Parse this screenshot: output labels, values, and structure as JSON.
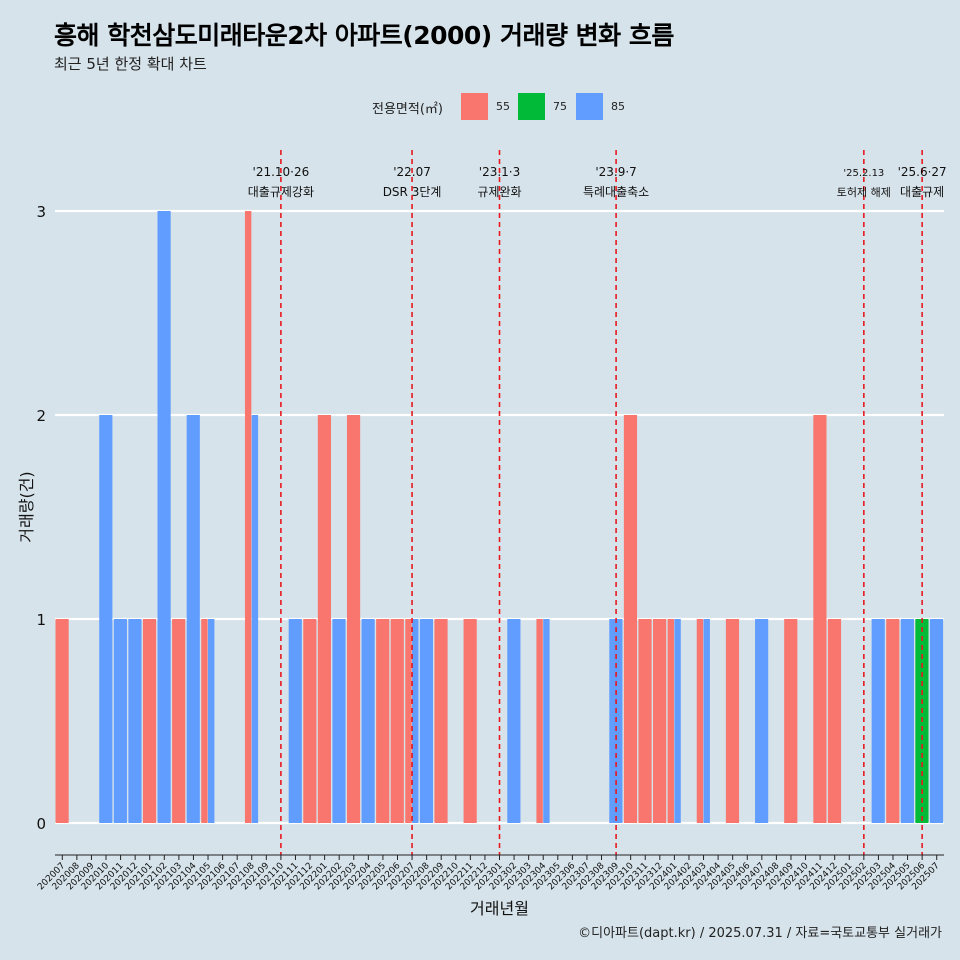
{
  "title": "흥해 학천삼도미래타운2차 아파트(2000) 거래량 변화 흐름",
  "subtitle": "최근 5년 한정 확대 차트",
  "caption": "©디아파트(dapt.kr) / 2025.07.31 / 자료=국토교통부 실거래가",
  "legend": {
    "title": "전용면적(㎡)",
    "items": [
      {
        "label": "55",
        "color": "#F8766D"
      },
      {
        "label": "75",
        "color": "#00BA38"
      },
      {
        "label": "85",
        "color": "#619CFF"
      }
    ]
  },
  "chart_data": {
    "type": "bar",
    "xlabel": "거래년월",
    "ylabel": "거래량(건)",
    "ylim": [
      0,
      3
    ],
    "y_ticks": [
      0,
      1,
      2,
      3
    ],
    "grid": true,
    "legend_position": "top",
    "categories": [
      "202007",
      "202008",
      "202009",
      "202010",
      "202011",
      "202012",
      "202101",
      "202102",
      "202103",
      "202104",
      "202105",
      "202106",
      "202107",
      "202108",
      "202109",
      "202110",
      "202111",
      "202112",
      "202201",
      "202202",
      "202203",
      "202204",
      "202205",
      "202206",
      "202207",
      "202208",
      "202209",
      "202210",
      "202211",
      "202212",
      "202301",
      "202302",
      "202303",
      "202304",
      "202305",
      "202306",
      "202307",
      "202308",
      "202309",
      "202310",
      "202311",
      "202312",
      "202401",
      "202402",
      "202403",
      "202404",
      "202405",
      "202406",
      "202407",
      "202408",
      "202409",
      "202410",
      "202411",
      "202412",
      "202501",
      "202502",
      "202503",
      "202504",
      "202505",
      "202506",
      "202507"
    ],
    "series": [
      {
        "name": "55",
        "color": "#F8766D",
        "values": [
          1,
          0,
          0,
          0,
          0,
          0,
          1,
          0,
          1,
          0,
          1,
          0,
          0,
          3,
          0,
          0,
          0,
          1,
          2,
          0,
          2,
          0,
          1,
          1,
          1,
          0,
          1,
          0,
          1,
          0,
          0,
          0,
          0,
          1,
          0,
          0,
          0,
          0,
          0,
          2,
          1,
          1,
          1,
          0,
          1,
          0,
          1,
          0,
          0,
          0,
          1,
          0,
          2,
          1,
          0,
          0,
          0,
          1,
          0,
          0,
          0
        ]
      },
      {
        "name": "75",
        "color": "#00BA38",
        "values": [
          0,
          0,
          0,
          0,
          0,
          0,
          0,
          0,
          0,
          0,
          0,
          0,
          0,
          0,
          0,
          0,
          0,
          0,
          0,
          0,
          0,
          0,
          0,
          0,
          0,
          0,
          0,
          0,
          0,
          0,
          0,
          0,
          0,
          0,
          0,
          0,
          0,
          0,
          0,
          0,
          0,
          0,
          0,
          0,
          0,
          0,
          0,
          0,
          0,
          0,
          0,
          0,
          0,
          0,
          0,
          0,
          0,
          0,
          0,
          1,
          0
        ]
      },
      {
        "name": "85",
        "color": "#619CFF",
        "values": [
          0,
          0,
          0,
          2,
          1,
          1,
          0,
          3,
          0,
          2,
          1,
          0,
          0,
          2,
          0,
          0,
          1,
          0,
          0,
          1,
          0,
          1,
          0,
          0,
          1,
          1,
          0,
          0,
          0,
          0,
          0,
          1,
          0,
          1,
          0,
          0,
          0,
          0,
          1,
          0,
          0,
          0,
          1,
          0,
          1,
          0,
          0,
          0,
          1,
          0,
          0,
          0,
          0,
          0,
          0,
          0,
          1,
          0,
          1,
          0,
          1
        ]
      }
    ],
    "event_lines": [
      {
        "date_label": "'21.10·26",
        "text": "대출규제강화",
        "category": "202110"
      },
      {
        "date_label": "'22.07",
        "text": "DSR 3단계",
        "category": "202207"
      },
      {
        "date_label": "'23.1·3",
        "text": "규제완화",
        "category": "202301"
      },
      {
        "date_label": "'23.9·7",
        "text": "특례대출축소",
        "category": "202309"
      },
      {
        "date_label": "'25.2.13",
        "text": "토허제 해제",
        "category": "202502"
      },
      {
        "date_label": "'25.6·27",
        "text": "대출규제",
        "category": "202506"
      }
    ]
  }
}
